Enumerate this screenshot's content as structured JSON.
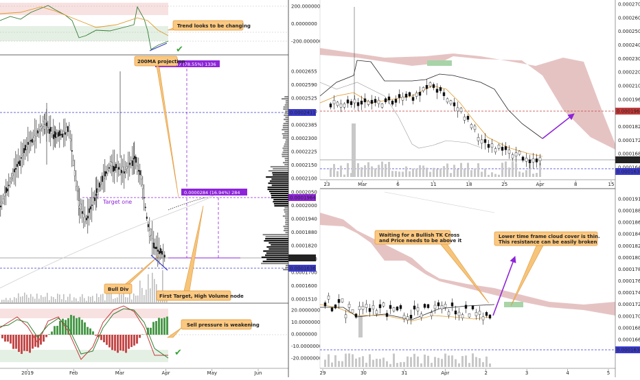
{
  "chart_data": [
    {
      "type": "line",
      "yaxis_ticks": [
        "200.0000000",
        "0.0000000",
        "-200.0000000"
      ],
      "annotation": "Trend looks to be changing"
    },
    {
      "type": "candlestick",
      "yaxis_ticks": [
        "0.0002655",
        "0.0002590",
        "0.0002525",
        "0.0002450",
        "0.0002385",
        "0.0002300",
        "0.0002225",
        "0.0002150",
        "0.0002100",
        "0.0002050",
        "0.0002000",
        "0.0001940",
        "0.0001880",
        "0.0001820",
        "0.0001760",
        "0.0001700",
        "0.0001600",
        "0.0001510"
      ],
      "price_tags": [
        "0.0002411",
        "0.0001964",
        "0.0001682",
        "0.0001636"
      ],
      "measure_top": "0.0000847 (78.55%) 1336",
      "measure_mid": "0.0000284 (16.94%) 284",
      "labels": {
        "ma": "200MA projection",
        "target1": "Target one",
        "bull": "Bull Div",
        "first": "First Target, High Volume node"
      },
      "xaxis_ticks": [
        "2019",
        "Feb",
        "Mar",
        "Apr",
        "May",
        "Jun"
      ]
    },
    {
      "type": "line",
      "yaxis_ticks": [
        "20.0000000",
        "10.0000000",
        "0.0000000",
        "-10.0000000",
        "-20.0000000"
      ],
      "annotation": "Sell pressure is weakening"
    },
    {
      "type": "candlestick",
      "yaxis_ticks": [
        "0.0002700",
        "0.0002600",
        "0.0002500",
        "0.0002400",
        "0.0002300",
        "0.0002200",
        "0.0002100",
        "0.0001960",
        "0.0001900",
        "0.0001820",
        "0.0001720",
        "0.0001680",
        "0.0001640"
      ],
      "price_tags": [
        "0.0001964",
        "0.0001682",
        "0.0001636"
      ],
      "xaxis_ticks": [
        "23",
        "Mar",
        "6",
        "11",
        "18",
        "25",
        "Apr",
        "8",
        "15"
      ]
    },
    {
      "type": "candlestick",
      "yaxis_ticks": [
        "0.0001910",
        "0.0001880",
        "0.0001860",
        "0.0001840",
        "0.0001820",
        "0.0001800",
        "0.0001780",
        "0.0001760",
        "0.0001740",
        "0.0001720",
        "0.0001700",
        "0.0001680",
        "0.0001660",
        "0.0001640"
      ],
      "price_tags": [
        "0.0001636"
      ],
      "annotations": [
        "Waiting for a Bullish TK Cross",
        "and Price needs to be above it",
        "Lower time frame cloud cover is thin.",
        "This resistance can be easily broken"
      ],
      "xaxis_ticks": [
        "29",
        "30",
        "31",
        "Apr",
        "2",
        "3",
        "4",
        "5"
      ]
    }
  ]
}
